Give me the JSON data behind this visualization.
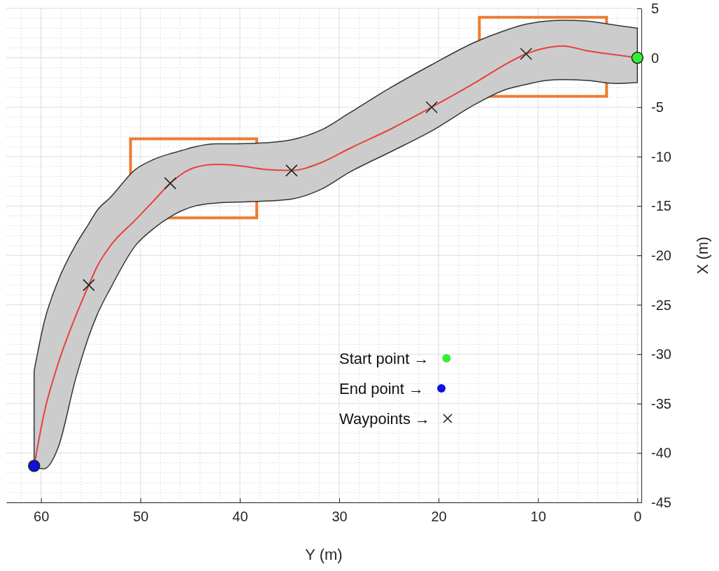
{
  "chart_data": {
    "type": "line",
    "xlabel": "Y (m)",
    "ylabel": "X (m)",
    "xlim": [
      63.5,
      -0.4
    ],
    "ylim": [
      -45,
      5
    ],
    "xticks": [
      60,
      50,
      40,
      30,
      20,
      10,
      0
    ],
    "yticks": [
      5,
      0,
      -5,
      -10,
      -15,
      -20,
      -25,
      -30,
      -35,
      -40,
      -45
    ],
    "grid": true,
    "legend": "bottom right",
    "series": [
      {
        "color": "#e8413c",
        "marker": "none",
        "x": [
          0,
          2.2,
          5.0,
          7.5,
          9.2,
          11.2,
          13.5,
          16.3,
          20.7,
          24.8,
          29.0,
          31.8,
          34.8,
          37.4,
          40.3,
          42.4,
          44.5,
          45.9,
          47.0,
          48.7,
          50.5,
          53.0,
          54.4,
          55.2,
          56.5,
          58.3,
          59.7,
          60.7
        ],
        "values": [
          0,
          0.3,
          0.7,
          1.2,
          1.0,
          0.4,
          -0.8,
          -2.5,
          -5.0,
          -7.2,
          -9.2,
          -10.6,
          -11.4,
          -11.3,
          -10.9,
          -10.8,
          -11.1,
          -11.8,
          -12.7,
          -14.5,
          -16.4,
          -19.0,
          -21.2,
          -23.0,
          -26.1,
          -31.0,
          -36.0,
          -41.3
        ],
        "upper": [
          3.0,
          3.3,
          3.7,
          3.8,
          3.7,
          3.4,
          2.7,
          1.6,
          -0.7,
          -3.0,
          -5.6,
          -7.3,
          -8.3,
          -8.6,
          -8.7,
          -8.7,
          -9.0,
          -9.4,
          -9.7,
          -10.3,
          -11.3,
          -14.1,
          -15.5,
          -16.8,
          -18.9,
          -22.6,
          -26.8,
          -31.7
        ],
        "lower": [
          -2.5,
          -2.6,
          -2.3,
          -2.2,
          -2.3,
          -2.7,
          -3.3,
          -4.7,
          -7.4,
          -9.5,
          -11.6,
          -13.3,
          -14.3,
          -14.5,
          -14.6,
          -14.7,
          -15.0,
          -15.5,
          -16.1,
          -17.3,
          -19.0,
          -23.3,
          -26.1,
          -28.2,
          -32.4,
          -39.5,
          -41.6,
          -41.5
        ]
      },
      {
        "type": "scatter",
        "name": "Start point →",
        "color": "#33ee33",
        "marker": "circle",
        "x": [
          0
        ],
        "values": [
          0
        ]
      },
      {
        "type": "scatter",
        "name": "End point →",
        "color": "#1010e0",
        "marker": "circle",
        "x": [
          60.7
        ],
        "values": [
          -41.3
        ]
      },
      {
        "type": "scatter",
        "name": "Waypoints →",
        "color": "#222222",
        "marker": "cross",
        "x": [
          11.2,
          20.7,
          34.8,
          47.0,
          55.2
        ],
        "values": [
          0.4,
          -5.0,
          -11.4,
          -12.7,
          -23.0
        ]
      }
    ]
  }
}
